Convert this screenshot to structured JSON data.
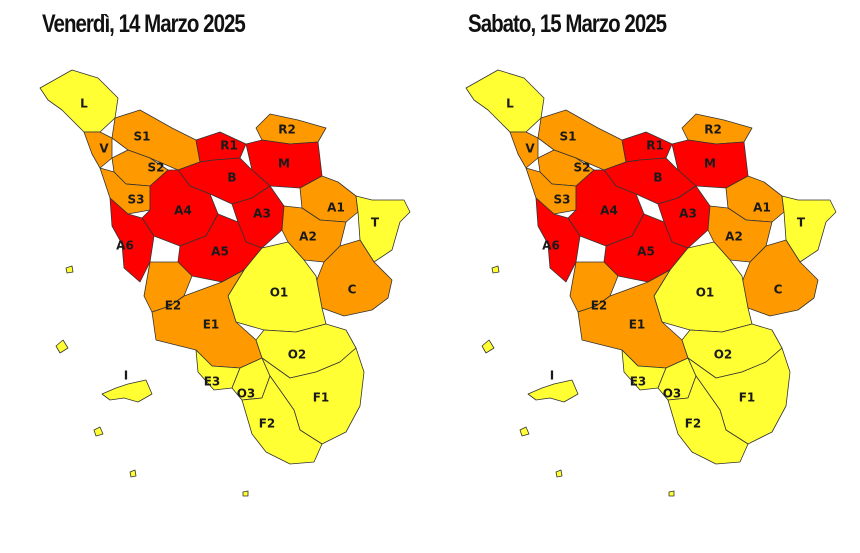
{
  "colors": {
    "yellow": "#ffff33",
    "orange": "#ff9900",
    "red": "#ff0000",
    "border": "#333333"
  },
  "maps": [
    {
      "title": "Venerdì, 14 Marzo 2025",
      "zones": {
        "L": "yellow",
        "V": "orange",
        "S1": "orange",
        "S2": "orange",
        "S3": "orange",
        "R1": "red",
        "R2": "orange",
        "B": "red",
        "M": "red",
        "A4": "red",
        "A3": "red",
        "A5": "red",
        "A6": "red",
        "A1": "orange",
        "A2": "orange",
        "T": "yellow",
        "C": "orange",
        "O1": "yellow",
        "E2": "orange",
        "E1": "orange",
        "O2": "yellow",
        "I": "yellow",
        "E3": "yellow",
        "O3": "yellow",
        "F1": "yellow",
        "F2": "yellow"
      }
    },
    {
      "title": "Sabato, 15 Marzo 2025",
      "zones": {
        "L": "yellow",
        "V": "orange",
        "S1": "orange",
        "S2": "orange",
        "S3": "orange",
        "R1": "red",
        "R2": "orange",
        "B": "red",
        "M": "red",
        "A4": "red",
        "A3": "red",
        "A5": "red",
        "A6": "red",
        "A1": "orange",
        "A2": "orange",
        "T": "yellow",
        "C": "orange",
        "O1": "yellow",
        "E2": "orange",
        "E1": "orange",
        "O2": "yellow",
        "I": "yellow",
        "E3": "yellow",
        "O3": "yellow",
        "F1": "yellow",
        "F2": "yellow"
      }
    }
  ]
}
